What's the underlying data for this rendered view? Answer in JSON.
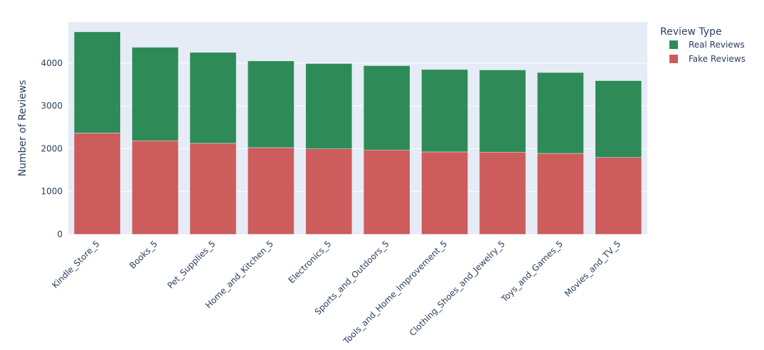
{
  "chart_data": {
    "type": "bar",
    "stacked": true,
    "categories": [
      "Kindle_Store_5",
      "Books_5",
      "Pet_Supplies_5",
      "Home_and_Kitchen_5",
      "Electronics_5",
      "Sports_and_Outdoors_5",
      "Tools_and_Home_Improvement_5",
      "Clothing_Shoes_and_Jewelry_5",
      "Toys_and_Games_5",
      "Movies_and_TV_5"
    ],
    "series": [
      {
        "name": "Fake Reviews",
        "color": "#cd5c5c",
        "values": [
          2365,
          2185,
          2125,
          2025,
          1995,
          1970,
          1925,
          1920,
          1890,
          1795
        ]
      },
      {
        "name": "Real Reviews",
        "color": "#2e8b57",
        "values": [
          2365,
          2185,
          2125,
          2025,
          1995,
          1970,
          1925,
          1920,
          1890,
          1795
        ]
      }
    ],
    "ylabel": "Number of Reviews",
    "xlabel": "",
    "ylim": [
      0,
      4960
    ],
    "yticks": [
      0,
      1000,
      2000,
      3000,
      4000
    ],
    "grid": true,
    "plot_bgcolor": "#e5ecf6",
    "legend": {
      "title": "Review Type",
      "position": "top-right",
      "order": [
        "Real Reviews",
        "Fake Reviews"
      ]
    }
  }
}
